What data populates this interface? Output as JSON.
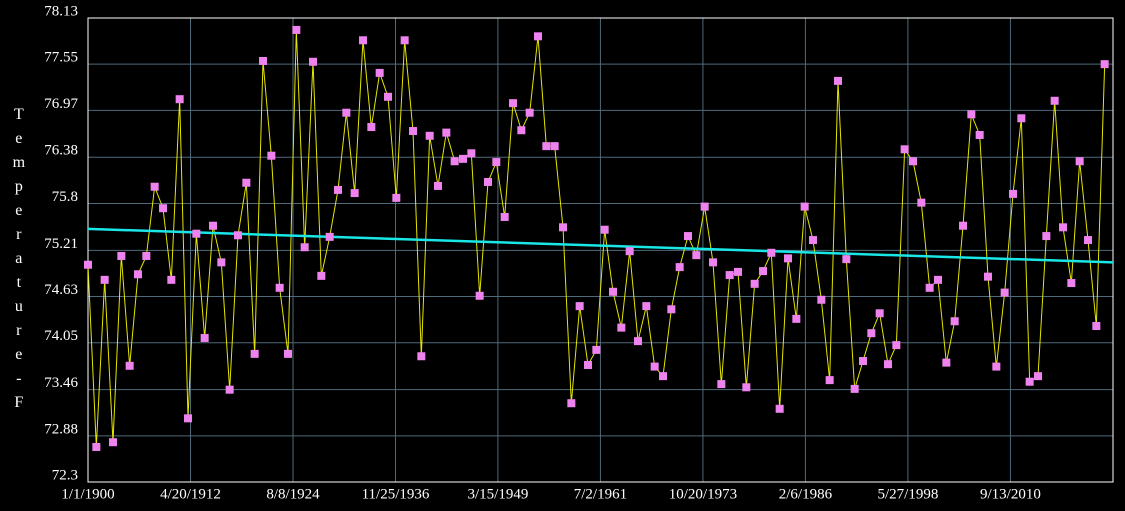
{
  "chart_data": {
    "type": "line",
    "y_label": "Temperature-F",
    "x": [
      1900,
      1901,
      1902,
      1903,
      1904,
      1905,
      1906,
      1907,
      1908,
      1909,
      1910,
      1911,
      1912,
      1913,
      1914,
      1915,
      1916,
      1917,
      1918,
      1919,
      1920,
      1921,
      1922,
      1923,
      1924,
      1925,
      1926,
      1927,
      1928,
      1929,
      1930,
      1931,
      1932,
      1933,
      1934,
      1935,
      1936,
      1937,
      1938,
      1939,
      1940,
      1941,
      1942,
      1943,
      1944,
      1945,
      1946,
      1947,
      1948,
      1949,
      1950,
      1951,
      1952,
      1953,
      1954,
      1955,
      1956,
      1957,
      1958,
      1959,
      1960,
      1961,
      1962,
      1963,
      1964,
      1965,
      1966,
      1967,
      1968,
      1969,
      1970,
      1971,
      1972,
      1973,
      1974,
      1975,
      1976,
      1977,
      1978,
      1979,
      1980,
      1981,
      1982,
      1983,
      1984,
      1985,
      1986,
      1987,
      1988,
      1989,
      1990,
      1991,
      1992,
      1993,
      1994,
      1995,
      1996,
      1997,
      1998,
      1999,
      2000,
      2001,
      2002,
      2003,
      2004,
      2005,
      2006,
      2007,
      2008,
      2009,
      2010,
      2011,
      2012,
      2013,
      2014,
      2015,
      2016,
      2017,
      2018,
      2019,
      2020,
      2021,
      2022
    ],
    "series": [
      {
        "color": "#e6e600",
        "marker_color": "#ee82ee",
        "values": [
          75.03,
          72.74,
          74.84,
          72.8,
          75.14,
          73.76,
          74.91,
          75.14,
          76.01,
          75.74,
          74.84,
          77.11,
          73.1,
          75.42,
          74.11,
          75.52,
          75.06,
          73.46,
          75.4,
          76.06,
          73.91,
          77.59,
          76.4,
          74.74,
          73.91,
          77.98,
          75.25,
          77.58,
          74.89,
          75.38,
          75.97,
          76.94,
          75.93,
          77.85,
          76.76,
          77.44,
          77.14,
          75.87,
          77.85,
          76.71,
          73.88,
          76.65,
          76.02,
          76.69,
          76.33,
          76.36,
          76.43,
          74.64,
          76.07,
          76.32,
          75.63,
          77.06,
          76.72,
          76.94,
          77.9,
          76.52,
          76.52,
          75.5,
          73.29,
          74.51,
          73.77,
          73.96,
          75.47,
          74.69,
          74.24,
          75.2,
          74.07,
          74.51,
          73.75,
          73.63,
          74.47,
          75.0,
          75.39,
          75.15,
          75.76,
          75.06,
          73.53,
          74.9,
          74.94,
          73.49,
          74.79,
          74.95,
          75.18,
          73.22,
          75.11,
          74.35,
          75.76,
          75.34,
          74.59,
          73.58,
          77.34,
          75.1,
          73.47,
          73.82,
          74.17,
          74.42,
          73.78,
          74.02,
          76.48,
          76.33,
          75.81,
          74.74,
          74.84,
          73.8,
          74.32,
          75.52,
          76.92,
          76.66,
          74.88,
          73.75,
          74.68,
          75.92,
          76.87,
          73.56,
          73.63,
          75.39,
          77.09,
          75.5,
          74.8,
          76.33,
          75.34,
          74.26,
          77.55
        ]
      }
    ],
    "trendline": {
      "color": "#19e6e6",
      "x": [
        1900,
        2023
      ],
      "values": [
        75.48,
        75.06
      ]
    },
    "xlim": [
      1900,
      2023
    ],
    "xticks": [
      {
        "value": 1900,
        "label": "1/1/1900"
      },
      {
        "value": 1912.3,
        "label": "4/20/1912"
      },
      {
        "value": 1924.6,
        "label": "8/8/1924"
      },
      {
        "value": 1936.9,
        "label": "11/25/1936"
      },
      {
        "value": 1949.19,
        "label": "3/15/1949"
      },
      {
        "value": 1961.49,
        "label": "7/2/1961"
      },
      {
        "value": 1973.79,
        "label": "10/20/1973"
      },
      {
        "value": 1986.09,
        "label": "2/6/1986"
      },
      {
        "value": 1998.39,
        "label": "5/27/1998"
      },
      {
        "value": 2010.69,
        "label": "9/13/2010"
      }
    ],
    "ylim": [
      72.3,
      78.13
    ],
    "yticks": [
      72.3,
      72.88,
      73.46,
      74.05,
      74.63,
      75.21,
      75.8,
      76.38,
      76.97,
      77.55,
      78.13
    ],
    "grid": true
  }
}
